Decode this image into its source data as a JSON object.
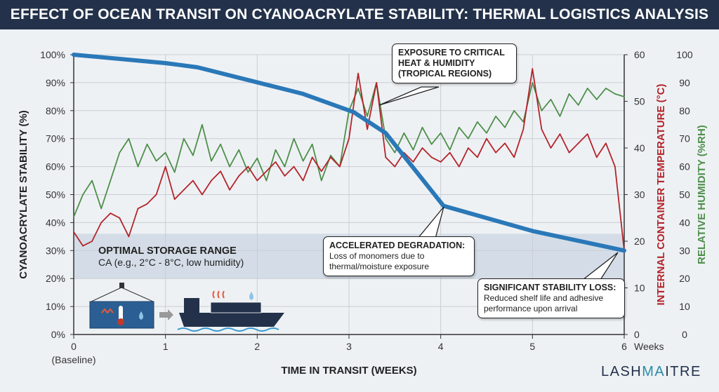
{
  "title": "EFFECT OF OCEAN TRANSIT ON CYANOACRYLATE STABILITY: THERMAL LOGISTICS ANALYSIS",
  "brand": {
    "part1": "LASH",
    "part2": "MA",
    "part3": "ITRE"
  },
  "colors": {
    "stability": "#2a78b8",
    "temperature": "#b3242a",
    "humidity": "#4d8f4a",
    "title_bg": "#23324a",
    "band": "#cfd9e4"
  },
  "chart_data": {
    "type": "line",
    "title": "EFFECT OF OCEAN TRANSIT ON CYANOACRYLATE STABILITY: THERMAL LOGISTICS ANALYSIS",
    "xlabel": "TIME IN TRANSIT (WEEKS)",
    "x_unit_label": "Weeks",
    "x_ticks": [
      "0",
      "1",
      "2",
      "3",
      "4",
      "5",
      "6"
    ],
    "x_sub_label": "(Baseline)",
    "xlim": [
      0,
      6
    ],
    "grid": true,
    "axes": {
      "left": {
        "label": "CYANOACRYLATE STABILITY (%)",
        "ylim": [
          0,
          100
        ],
        "ticks": [
          "0%",
          "10%",
          "20%",
          "30%",
          "40%",
          "50%",
          "60%",
          "70%",
          "80%",
          "90%",
          "100%"
        ]
      },
      "right1": {
        "label": "INTERNAL CONTAINER TEMPERATURE (°C)",
        "ylim": [
          0,
          60
        ],
        "ticks": [
          "0",
          "10",
          "20",
          "30",
          "40",
          "50",
          "60"
        ]
      },
      "right2": {
        "label": "RELATIVE HUMIDITY (%RH)",
        "ylim": [
          0,
          100
        ],
        "ticks": [
          "0",
          "10",
          "20",
          "30",
          "40",
          "50",
          "60",
          "70",
          "80",
          "90",
          "100"
        ]
      }
    },
    "band": {
      "axis": "left",
      "range": [
        20,
        36
      ],
      "title": "OPTIMAL STORAGE RANGE",
      "subtitle": "CA (e.g., 2°C - 8°C, low humidity)"
    },
    "series": [
      {
        "key": "stability",
        "axis": "left",
        "x": [
          0,
          1,
          1.35,
          2.5,
          3.05,
          3.4,
          4.03,
          5,
          6
        ],
        "y": [
          100,
          97,
          95.5,
          86,
          79.5,
          72,
          46,
          37,
          30
        ]
      },
      {
        "key": "temperature",
        "axis": "right1",
        "x_step": 0.1,
        "y": [
          22,
          19,
          20,
          24,
          26,
          25,
          21,
          27,
          28,
          30,
          36,
          29,
          31,
          33,
          30,
          33,
          35,
          31,
          34,
          36,
          33,
          35,
          37,
          34,
          36,
          33,
          38,
          35,
          38,
          36,
          42,
          56,
          44,
          54,
          38,
          36,
          39,
          37,
          40,
          38,
          37,
          39,
          36,
          40,
          38,
          42,
          39,
          41,
          38,
          44,
          57,
          44,
          40,
          43,
          39,
          41,
          43,
          38,
          41,
          36,
          18
        ]
      },
      {
        "key": "humidity",
        "axis": "right2",
        "x_step": 0.1,
        "y": [
          42,
          50,
          55,
          45,
          55,
          65,
          70,
          60,
          68,
          62,
          65,
          58,
          70,
          64,
          75,
          62,
          68,
          60,
          66,
          58,
          63,
          55,
          66,
          60,
          70,
          62,
          68,
          55,
          64,
          60,
          80,
          88,
          78,
          90,
          70,
          65,
          72,
          66,
          74,
          68,
          72,
          66,
          74,
          70,
          76,
          72,
          78,
          74,
          80,
          76,
          90,
          80,
          84,
          78,
          86,
          82,
          88,
          84,
          88,
          86,
          85
        ]
      }
    ],
    "annotations": [
      {
        "title": "EXPOSURE TO CRITICAL HEAT & HUMIDITY (TROPICAL REGIONS)",
        "lines": [
          "EXPOSURE TO CRITICAL",
          "HEAT & HUMIDITY",
          "(TROPICAL REGIONS)"
        ]
      },
      {
        "title": "ACCELERATED DEGRADATION:",
        "lines": [
          "Loss of monomers due to",
          "thermal/moisture exposure"
        ]
      },
      {
        "title": "SIGNIFICANT STABILITY LOSS:",
        "lines": [
          "Reduced shelf life and adhesive",
          "performance upon arrival"
        ]
      }
    ]
  }
}
